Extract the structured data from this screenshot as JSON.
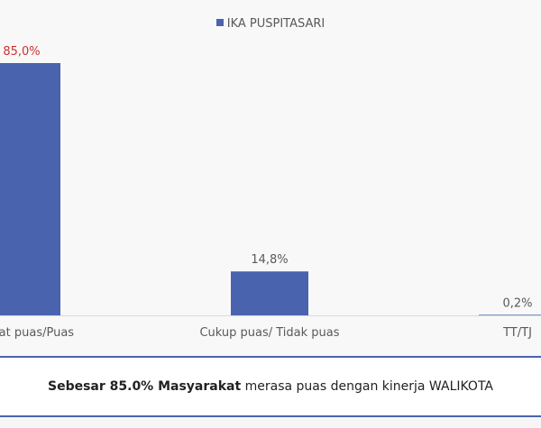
{
  "chart_data": {
    "type": "bar",
    "categories": [
      "Sangat puas/Puas",
      "Cukup puas/ Tidak puas",
      "TT/TJ"
    ],
    "series": [
      {
        "name": "IKA PUSPITASARI",
        "values": [
          85.0,
          14.8,
          0.2
        ],
        "labels": [
          "85,0%",
          "14,8%",
          "0,2%"
        ]
      }
    ],
    "ylim": [
      0,
      100
    ],
    "grid": false,
    "legend": "top"
  },
  "colors": {
    "bar": "#4a63ae",
    "highlight_label": "#d0312d",
    "label": "#595959"
  },
  "summary": {
    "bold_1": "Sebesar 85.0% Masyarakat",
    "rest": " merasa puas dengan kinerja WALIKOTA"
  }
}
